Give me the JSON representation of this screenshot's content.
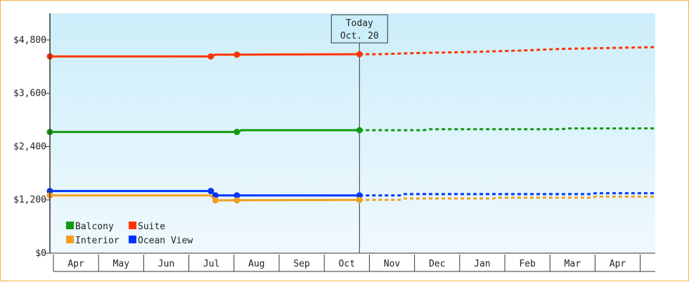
{
  "chart_data": {
    "type": "line",
    "ylim": [
      0,
      5400
    ],
    "y_ticks": [
      {
        "value": 0,
        "label": "$0"
      },
      {
        "value": 1200,
        "label": "$1,200"
      },
      {
        "value": 2400,
        "label": "$2,400"
      },
      {
        "value": 3600,
        "label": "$3,600"
      },
      {
        "value": 4800,
        "label": "$4,800"
      }
    ],
    "x_range": [
      "2020-04-01",
      "2021-05-01"
    ],
    "months": [
      {
        "label": "Apr",
        "date": "2020-04-01"
      },
      {
        "label": "May",
        "date": "2020-05-01"
      },
      {
        "label": "Jun",
        "date": "2020-06-01"
      },
      {
        "label": "Jul",
        "date": "2020-07-01"
      },
      {
        "label": "Aug",
        "date": "2020-08-01"
      },
      {
        "label": "Sep",
        "date": "2020-09-01"
      },
      {
        "label": "Oct",
        "date": "2020-10-01"
      },
      {
        "label": "Nov",
        "date": "2020-11-01"
      },
      {
        "label": "Dec",
        "date": "2020-12-01"
      },
      {
        "label": "Jan",
        "date": "2021-01-01"
      },
      {
        "label": "Feb",
        "date": "2021-02-01"
      },
      {
        "label": "Mar",
        "date": "2021-03-01"
      },
      {
        "label": "Apr",
        "date": "2021-04-01"
      }
    ],
    "today": {
      "date": "2020-10-20",
      "line1": "Today",
      "line2": "Oct. 20"
    },
    "series": [
      {
        "name": "Suite",
        "color": "#ff3300",
        "points": [
          [
            "2020-04-01",
            4430
          ],
          [
            "2020-07-15",
            4430
          ],
          [
            "2020-07-18",
            4470
          ],
          [
            "2020-08-01",
            4470
          ],
          [
            "2020-10-20",
            4480
          ]
        ],
        "forecast": [
          [
            "2020-10-20",
            4480
          ],
          [
            "2020-11-01",
            4480
          ],
          [
            "2020-12-01",
            4510
          ],
          [
            "2021-01-01",
            4530
          ],
          [
            "2021-02-01",
            4560
          ],
          [
            "2021-03-01",
            4600
          ],
          [
            "2021-05-01",
            4640
          ]
        ],
        "markers": [
          [
            "2020-04-01",
            4430
          ],
          [
            "2020-07-15",
            4430
          ],
          [
            "2020-08-01",
            4470
          ],
          [
            "2020-10-20",
            4480
          ]
        ]
      },
      {
        "name": "Balcony",
        "color": "#119911",
        "points": [
          [
            "2020-04-01",
            2730
          ],
          [
            "2020-08-01",
            2730
          ],
          [
            "2020-08-04",
            2770
          ],
          [
            "2020-10-20",
            2770
          ]
        ],
        "forecast": [
          [
            "2020-10-20",
            2770
          ],
          [
            "2020-12-01",
            2770
          ],
          [
            "2020-12-05",
            2790
          ],
          [
            "2021-03-01",
            2790
          ],
          [
            "2021-03-05",
            2810
          ],
          [
            "2021-05-01",
            2810
          ]
        ],
        "markers": [
          [
            "2020-04-01",
            2730
          ],
          [
            "2020-08-01",
            2730
          ],
          [
            "2020-10-20",
            2770
          ]
        ]
      },
      {
        "name": "Ocean View",
        "color": "#0033ff",
        "points": [
          [
            "2020-04-01",
            1400
          ],
          [
            "2020-07-15",
            1400
          ],
          [
            "2020-07-18",
            1300
          ],
          [
            "2020-10-20",
            1300
          ]
        ],
        "forecast": [
          [
            "2020-10-20",
            1300
          ],
          [
            "2020-11-15",
            1300
          ],
          [
            "2020-11-18",
            1330
          ],
          [
            "2021-03-20",
            1330
          ],
          [
            "2021-03-23",
            1350
          ],
          [
            "2021-05-01",
            1350
          ]
        ],
        "markers": [
          [
            "2020-04-01",
            1400
          ],
          [
            "2020-07-15",
            1400
          ],
          [
            "2020-07-18",
            1300
          ],
          [
            "2020-08-01",
            1300
          ],
          [
            "2020-10-20",
            1300
          ]
        ]
      },
      {
        "name": "Interior",
        "color": "#f0a020",
        "points": [
          [
            "2020-04-01",
            1300
          ],
          [
            "2020-07-15",
            1300
          ],
          [
            "2020-07-18",
            1190
          ],
          [
            "2020-10-20",
            1200
          ]
        ],
        "forecast": [
          [
            "2020-10-20",
            1200
          ],
          [
            "2020-11-15",
            1200
          ],
          [
            "2020-11-18",
            1230
          ],
          [
            "2021-01-15",
            1230
          ],
          [
            "2021-01-18",
            1250
          ],
          [
            "2021-03-20",
            1250
          ],
          [
            "2021-03-23",
            1270
          ],
          [
            "2021-05-01",
            1270
          ]
        ],
        "markers": [
          [
            "2020-04-01",
            1300
          ],
          [
            "2020-07-18",
            1190
          ],
          [
            "2020-08-01",
            1190
          ],
          [
            "2020-10-20",
            1200
          ]
        ]
      }
    ],
    "legend": [
      {
        "name": "Balcony",
        "color": "#119911"
      },
      {
        "name": "Suite",
        "color": "#ff3300"
      },
      {
        "name": "Interior",
        "color": "#f0a020"
      },
      {
        "name": "Ocean View",
        "color": "#0033ff"
      }
    ]
  }
}
